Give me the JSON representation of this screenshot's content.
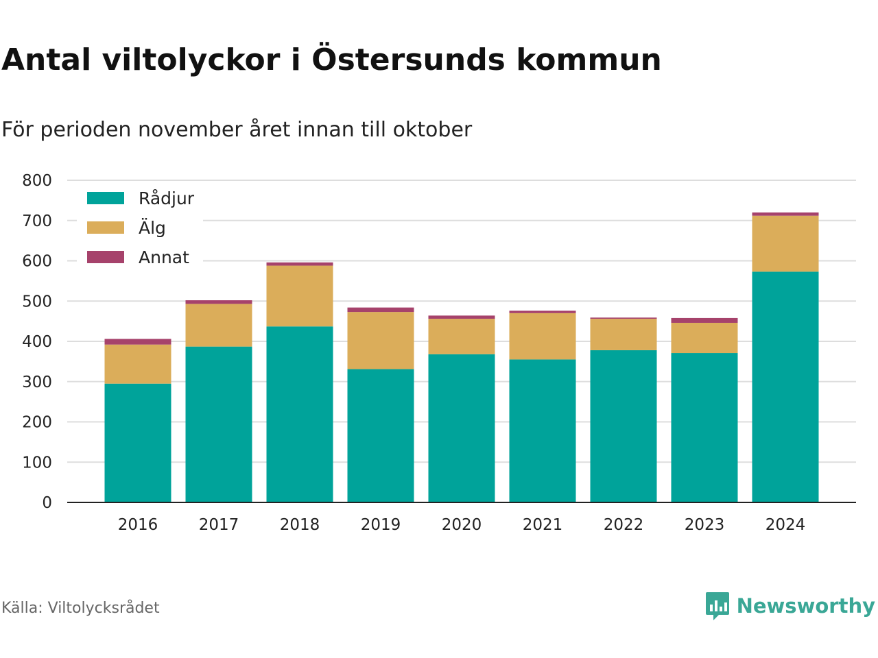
{
  "header": {
    "title": "Antal viltolyckor i Östersunds kommun",
    "subtitle": "För perioden november året innan till oktober"
  },
  "footer": {
    "source": "Källa: Viltolycksrådet",
    "brand": "Newsworthy",
    "brand_icon": "newsworthy-logo-icon",
    "brand_color": "#3aa796"
  },
  "chart_data": {
    "type": "bar",
    "stacked": true,
    "categories": [
      "2016",
      "2017",
      "2018",
      "2019",
      "2020",
      "2021",
      "2022",
      "2023",
      "2024"
    ],
    "series": [
      {
        "name": "Rådjur",
        "color": "#00a39a",
        "values": [
          295,
          387,
          437,
          331,
          368,
          355,
          378,
          371,
          573
        ]
      },
      {
        "name": "Älg",
        "color": "#dbad5a",
        "values": [
          97,
          106,
          151,
          142,
          88,
          115,
          78,
          75,
          139
        ]
      },
      {
        "name": "Annat",
        "color": "#a6426b",
        "values": [
          14,
          9,
          8,
          11,
          8,
          6,
          3,
          12,
          8
        ]
      }
    ],
    "ylim": [
      0,
      800
    ],
    "yticks": [
      "0",
      "100",
      "200",
      "300",
      "400",
      "500",
      "600",
      "700",
      "800"
    ],
    "grid": true,
    "legend_position": "top-left"
  }
}
